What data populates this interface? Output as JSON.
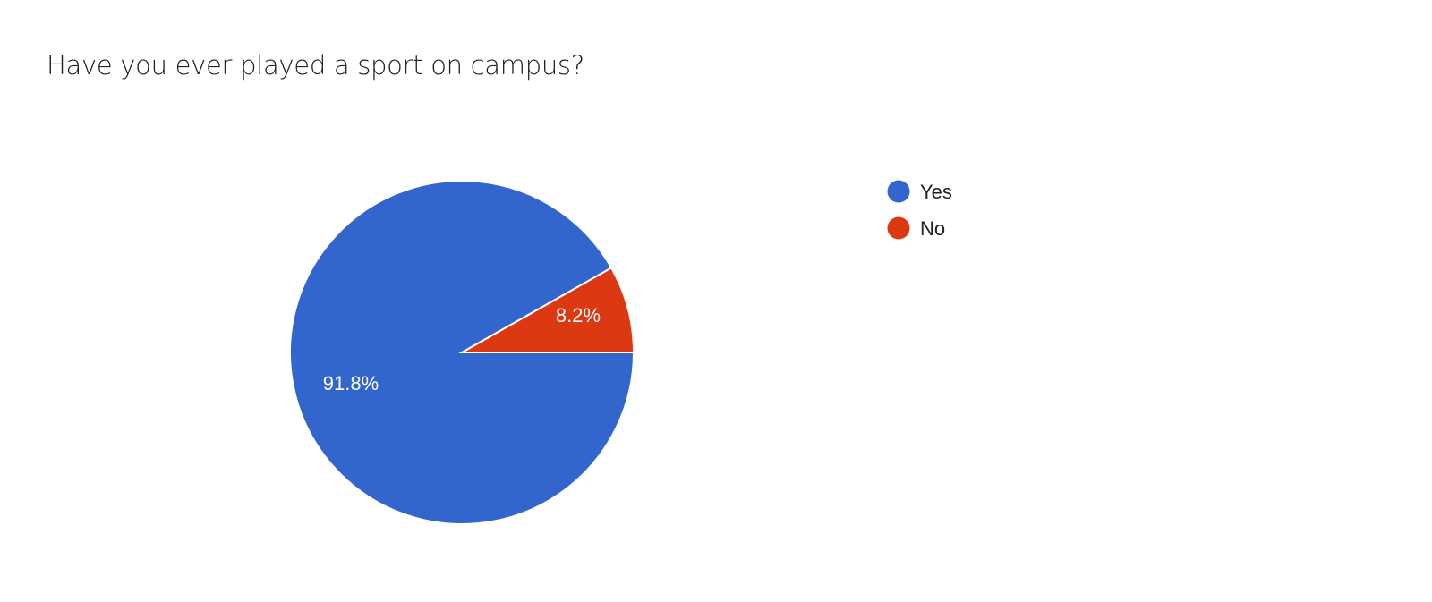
{
  "chart_data": {
    "type": "pie",
    "title": "Have you ever played a sport on campus?",
    "categories": [
      "Yes",
      "No"
    ],
    "values": [
      91.8,
      8.2
    ],
    "data_labels": [
      "91.8%",
      "8.2%"
    ],
    "colors": [
      "#3366cc",
      "#dc3912"
    ],
    "legend_position": "right"
  }
}
